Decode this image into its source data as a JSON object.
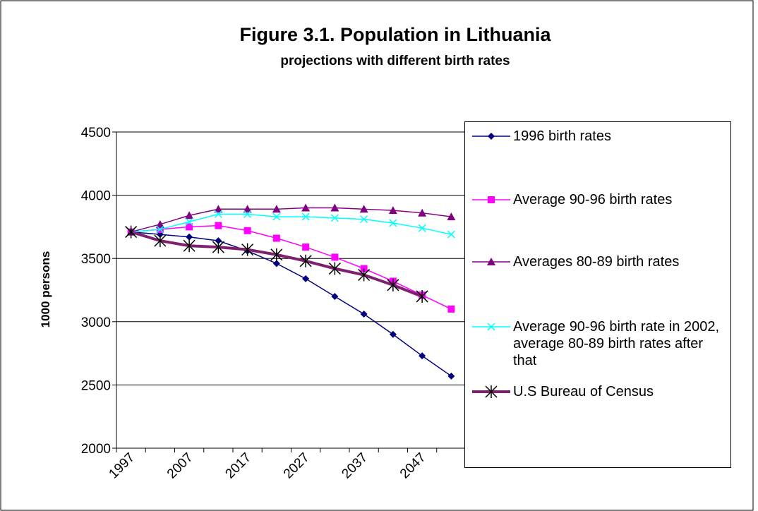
{
  "chart_data": {
    "type": "line",
    "title": "Figure 3.1. Population in Lithuania",
    "subtitle": "projections with different birth rates",
    "y_label": "1000 persons",
    "categories": [
      "1997",
      null,
      "2007",
      null,
      "2017",
      null,
      "2027",
      null,
      "2037",
      null,
      "2047",
      null
    ],
    "ylim": [
      2000,
      4500
    ],
    "yticks": [
      2000,
      2500,
      3000,
      3500,
      4000,
      4500
    ],
    "grid": true,
    "series": [
      {
        "name": "1996 birth rates",
        "color": "#000080",
        "marker": "diamond",
        "values": [
          3710,
          3690,
          3670,
          3640,
          3560,
          3460,
          3340,
          3200,
          3060,
          2900,
          2730,
          2570
        ]
      },
      {
        "name": "Average 90-96 birth rates",
        "color": "#ff00ff",
        "marker": "square",
        "values": [
          3710,
          3730,
          3750,
          3760,
          3720,
          3660,
          3590,
          3510,
          3420,
          3320,
          3210,
          3100
        ]
      },
      {
        "name": "Averages 80-89 birth rates",
        "color": "#800080",
        "marker": "triangle",
        "values": [
          3710,
          3770,
          3840,
          3890,
          3890,
          3890,
          3900,
          3900,
          3890,
          3880,
          3860,
          3830
        ]
      },
      {
        "name": "Average 90-96 birth rate in 2002, average 80-89 birth rates after that",
        "color": "#00ffff",
        "marker": "x",
        "values": [
          3710,
          3730,
          3790,
          3850,
          3850,
          3830,
          3830,
          3820,
          3810,
          3780,
          3740,
          3690
        ]
      },
      {
        "name": "U.S Bureau of Census",
        "color": "#7f1f6f",
        "marker": "star",
        "values": [
          3710,
          3640,
          3600,
          3590,
          3570,
          3530,
          3480,
          3420,
          3370,
          3290,
          3200,
          null
        ]
      }
    ]
  }
}
